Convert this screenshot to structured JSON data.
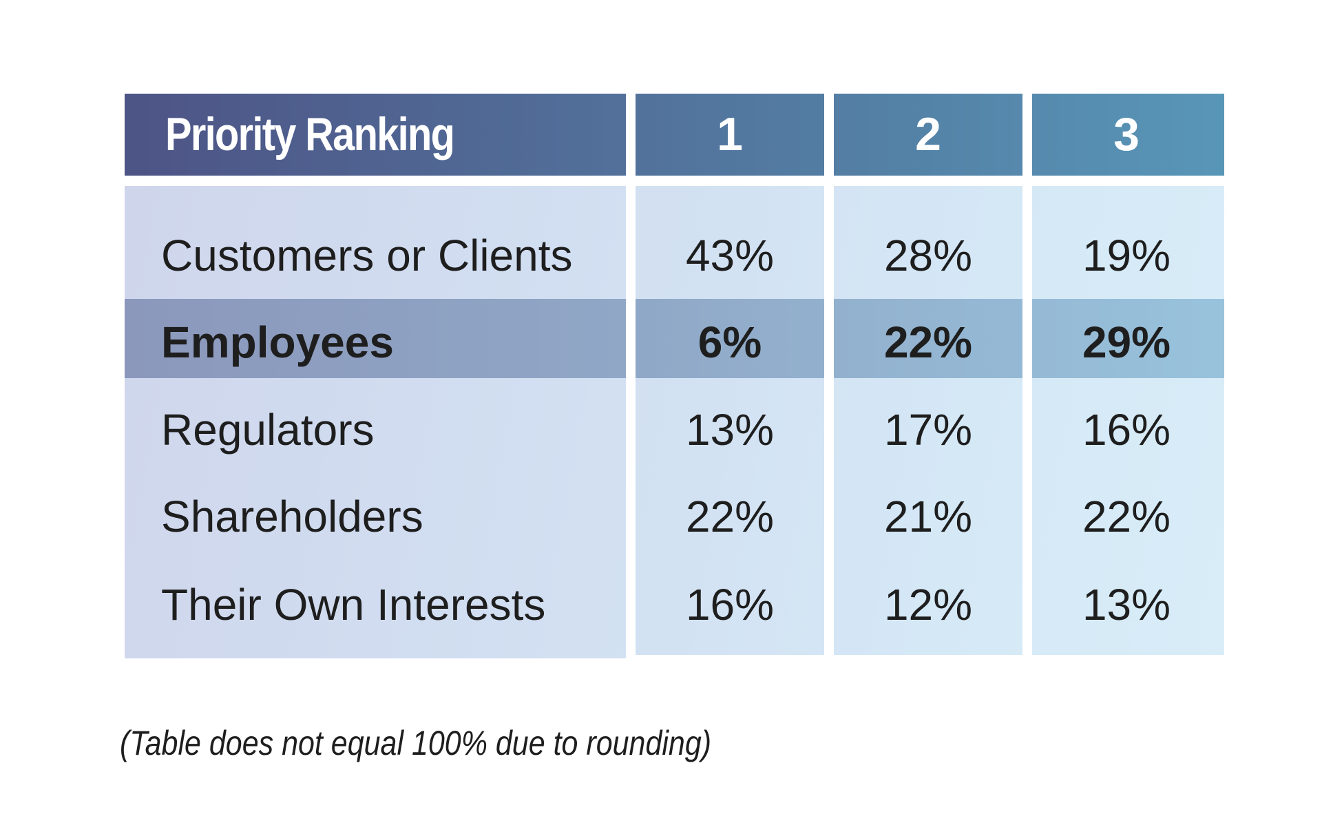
{
  "chart_data": {
    "type": "table",
    "columns": [
      "Priority Ranking",
      "1",
      "2",
      "3"
    ],
    "rows": [
      {
        "label": "Customers or Clients",
        "values": [
          "43%",
          "28%",
          "19%"
        ],
        "highlight": false
      },
      {
        "label": "Employees",
        "values": [
          "6%",
          "22%",
          "29%"
        ],
        "highlight": true
      },
      {
        "label": "Regulators",
        "values": [
          "13%",
          "17%",
          "16%"
        ],
        "highlight": false
      },
      {
        "label": "Shareholders",
        "values": [
          "22%",
          "21%",
          "22%"
        ],
        "highlight": false
      },
      {
        "label": "Their Own Interests",
        "values": [
          "16%",
          "12%",
          "13%"
        ],
        "highlight": false
      }
    ],
    "footnote": "(Table does not equal 100% due to rounding)"
  },
  "colors": {
    "header_start": "#4d5486",
    "header_end": "#5896b8",
    "body_start": "#cfd6ec",
    "body_end": "#d8edf8",
    "highlight_start": "#8b98bc",
    "highlight_end": "#98c2dc",
    "text": "#1e1e1e"
  }
}
